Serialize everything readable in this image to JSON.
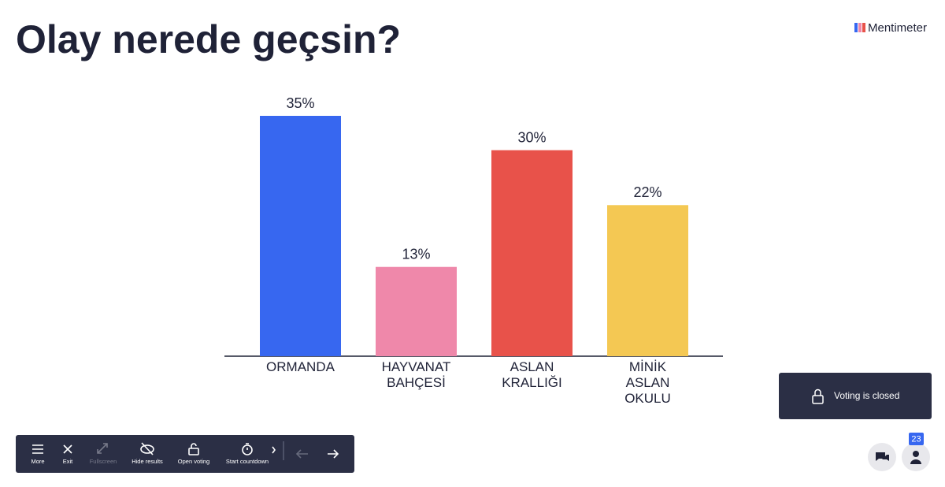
{
  "header": {
    "title": "Olay nerede geçsin?",
    "brand": "Mentimeter"
  },
  "chart_data": {
    "type": "bar",
    "categories": [
      "ORMANDA",
      "HAYVANAT\nBAHÇESİ",
      "ASLAN\nKRALLIĞI",
      "MİNİK\nASLAN\nOKULU"
    ],
    "values": [
      35,
      13,
      30,
      22
    ],
    "value_labels": [
      "35%",
      "13%",
      "30%",
      "22%"
    ],
    "colors": [
      "#3767f0",
      "#ef88aa",
      "#e8524a",
      "#f4c853"
    ]
  },
  "status": {
    "text": "Voting is closed"
  },
  "toolbar": {
    "items": [
      "More",
      "Exit",
      "Fullscreen",
      "Hide results",
      "Open voting",
      "Start countdown"
    ]
  },
  "participants": {
    "count": 23
  }
}
